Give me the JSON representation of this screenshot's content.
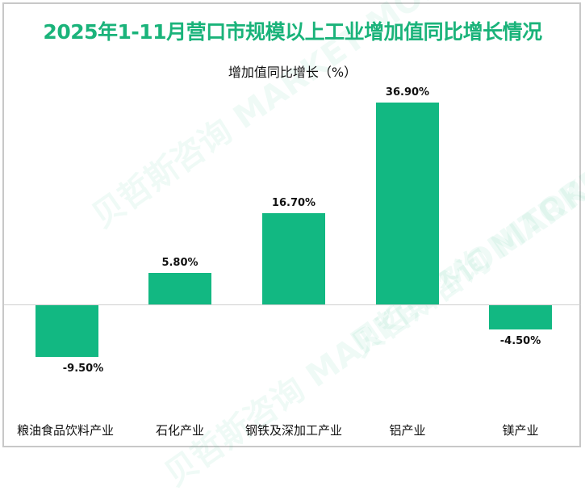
{
  "title": "2025年1-11月营口市规模以上工业增加值同比增长情况",
  "watermark": "贝哲斯咨询 MARKET MONITOR",
  "colors": {
    "title": "#1ab37a",
    "bar": "#12b882"
  },
  "chart_data": {
    "type": "bar",
    "title": "2025年1-11月营口市规模以上工业增加值同比增长情况",
    "series_label": "增加值同比增长（%）",
    "categories": [
      "粮油食品饮料产业",
      "石化产业",
      "钢铁及深加工产业",
      "铝产业",
      "镁产业"
    ],
    "values": [
      -9.5,
      5.8,
      16.7,
      36.9,
      -4.5
    ],
    "data_labels": [
      "-9.50%",
      "5.80%",
      "16.70%",
      "36.90%",
      "-4.50%"
    ],
    "xlabel": "",
    "ylabel": "",
    "grid": false
  }
}
